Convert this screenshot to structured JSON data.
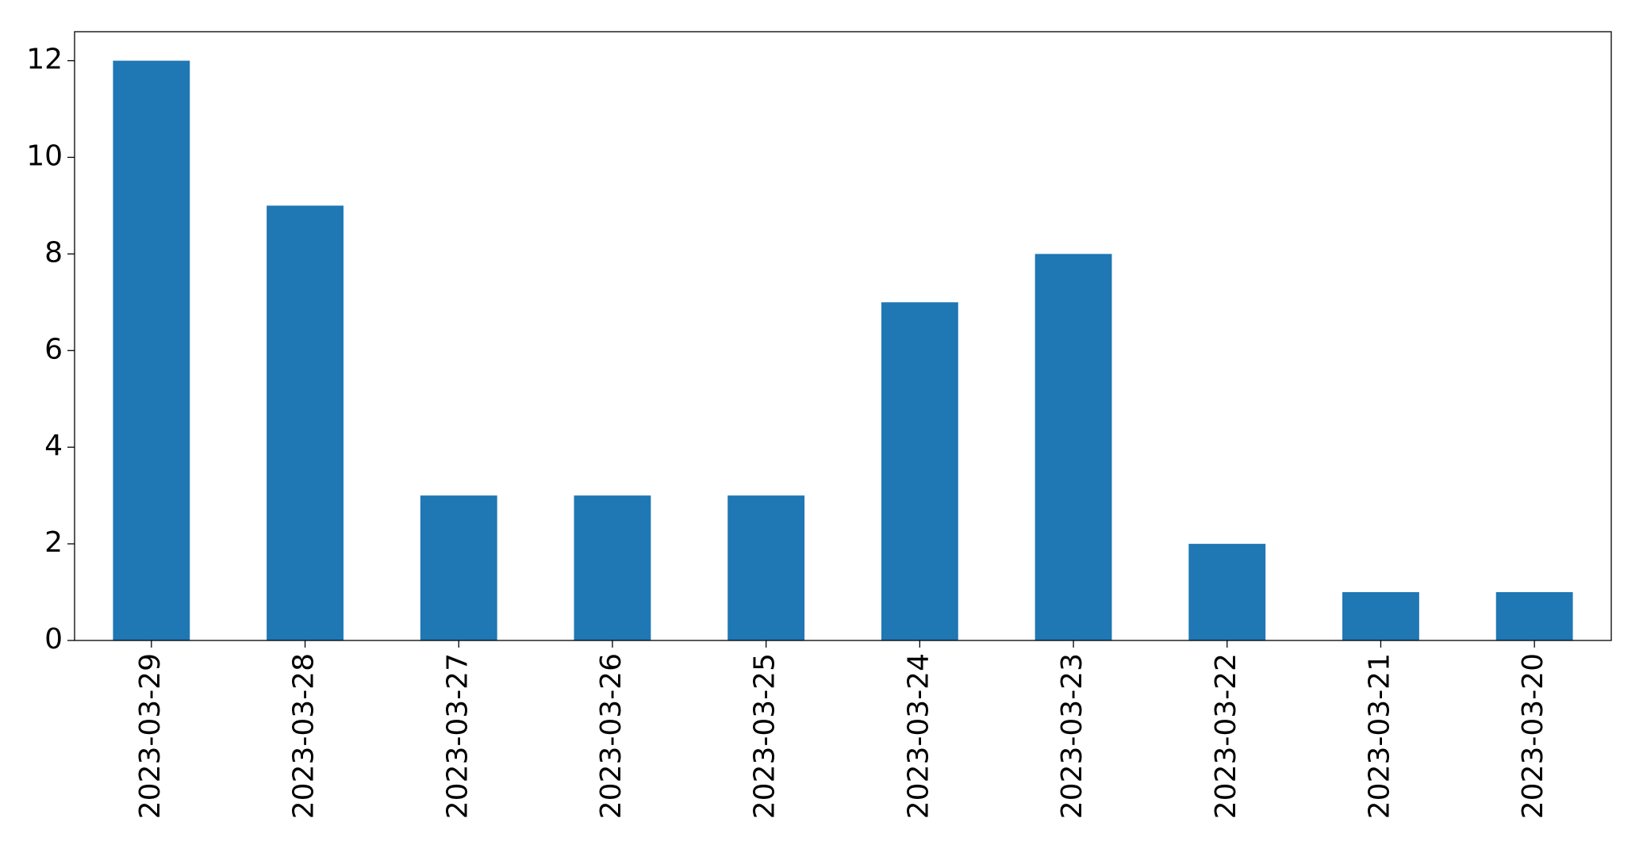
{
  "chart_data": {
    "type": "bar",
    "categories": [
      "2023-03-29",
      "2023-03-28",
      "2023-03-27",
      "2023-03-26",
      "2023-03-25",
      "2023-03-24",
      "2023-03-23",
      "2023-03-22",
      "2023-03-21",
      "2023-03-20"
    ],
    "values": [
      12,
      9,
      3,
      3,
      3,
      7,
      8,
      2,
      1,
      1
    ],
    "color": "#1f77b4",
    "ylim": [
      0,
      12.6
    ],
    "yticks": [
      0,
      2,
      4,
      6,
      8,
      10,
      12
    ],
    "grid": false
  }
}
